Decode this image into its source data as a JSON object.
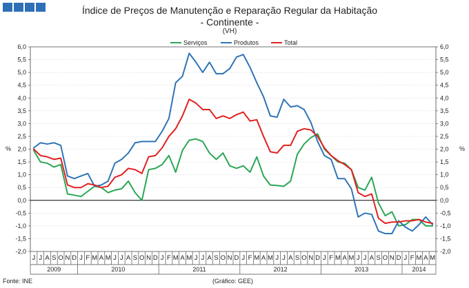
{
  "chart_data": {
    "type": "line",
    "title": "Índice de Preços de Manutenção e Reparação Regular da Habitação",
    "subtitle": "- Continente -",
    "unit_label": "(VH)",
    "ylabel": "%",
    "ylim": [
      -2.0,
      6.0
    ],
    "ytick_step": 0.5,
    "yticks": [
      "6,0",
      "5,5",
      "5,0",
      "4,5",
      "4,0",
      "3,5",
      "3,0",
      "2,5",
      "2,0",
      "1,5",
      "1,0",
      "0,5",
      "0,0",
      "-0,5",
      "-1,0",
      "-1,5",
      "-2,0"
    ],
    "months": [
      "J",
      "J",
      "A",
      "S",
      "O",
      "N",
      "D",
      "J",
      "F",
      "M",
      "A",
      "M",
      "J",
      "J",
      "A",
      "S",
      "O",
      "N",
      "D",
      "J",
      "F",
      "M",
      "A",
      "M",
      "J",
      "J",
      "A",
      "S",
      "O",
      "N",
      "D",
      "J",
      "F",
      "M",
      "A",
      "M",
      "J",
      "J",
      "A",
      "S",
      "O",
      "N",
      "D",
      "J",
      "F",
      "M",
      "A",
      "M",
      "J",
      "J",
      "A",
      "S",
      "O",
      "N",
      "D",
      "J",
      "F",
      "M",
      "A",
      "M"
    ],
    "years": [
      {
        "label": "2009",
        "start": 0,
        "end": 6
      },
      {
        "label": "2010",
        "start": 7,
        "end": 18
      },
      {
        "label": "2011",
        "start": 19,
        "end": 30
      },
      {
        "label": "2012",
        "start": 31,
        "end": 42
      },
      {
        "label": "2013",
        "start": 43,
        "end": 54
      },
      {
        "label": "2014",
        "start": 55,
        "end": 59
      }
    ],
    "legend": [
      {
        "name": "Serviços",
        "color": "#2aa655"
      },
      {
        "name": "Produtos",
        "color": "#2e74b5"
      },
      {
        "name": "Total",
        "color": "#e0201f"
      }
    ],
    "series": [
      {
        "name": "Serviços",
        "color": "#2aa655",
        "values": [
          1.95,
          1.5,
          1.45,
          1.3,
          1.4,
          0.25,
          0.2,
          0.15,
          0.35,
          0.55,
          0.5,
          0.3,
          0.4,
          0.45,
          0.75,
          0.3,
          0.0,
          1.2,
          1.25,
          1.4,
          1.75,
          1.1,
          1.95,
          2.35,
          2.4,
          2.3,
          1.85,
          1.6,
          1.85,
          1.35,
          1.25,
          1.35,
          1.1,
          1.7,
          0.95,
          0.6,
          0.58,
          0.55,
          0.75,
          1.8,
          2.2,
          2.45,
          2.6,
          2.0,
          1.75,
          1.5,
          1.45,
          1.2,
          0.5,
          0.4,
          0.9,
          -0.1,
          -0.6,
          -0.45,
          -1.0,
          -0.95,
          -0.75,
          -0.75,
          -1.0,
          -1.0
        ]
      },
      {
        "name": "Produtos",
        "color": "#2e74b5",
        "values": [
          2.05,
          2.25,
          2.2,
          2.25,
          2.15,
          0.95,
          0.85,
          0.95,
          1.05,
          0.55,
          0.6,
          0.75,
          1.45,
          1.6,
          1.85,
          2.25,
          2.3,
          2.3,
          2.3,
          2.7,
          3.2,
          4.6,
          4.85,
          5.75,
          5.4,
          5.0,
          5.4,
          4.95,
          4.95,
          5.15,
          5.6,
          5.7,
          5.2,
          4.6,
          4.05,
          3.3,
          3.25,
          3.95,
          3.65,
          3.7,
          3.55,
          3.05,
          2.3,
          1.75,
          1.6,
          0.85,
          0.85,
          0.45,
          -0.65,
          -0.5,
          -0.55,
          -1.2,
          -1.3,
          -1.3,
          -0.8,
          -1.05,
          -1.2,
          -0.95,
          -0.65,
          -0.95
        ]
      },
      {
        "name": "Total",
        "color": "#e0201f",
        "values": [
          2.0,
          1.75,
          1.7,
          1.6,
          1.65,
          0.6,
          0.5,
          0.5,
          0.65,
          0.6,
          0.5,
          0.55,
          0.9,
          1.0,
          1.25,
          1.2,
          1.05,
          1.7,
          1.75,
          2.05,
          2.5,
          2.8,
          3.3,
          3.95,
          3.8,
          3.55,
          3.55,
          3.2,
          3.3,
          3.2,
          3.35,
          3.45,
          3.1,
          3.15,
          2.5,
          1.9,
          1.85,
          2.15,
          2.15,
          2.7,
          2.8,
          2.75,
          2.5,
          2.05,
          1.75,
          1.55,
          1.4,
          1.2,
          0.3,
          0.15,
          0.25,
          -0.7,
          -0.9,
          -0.85,
          -0.85,
          -0.8,
          -0.8,
          -0.75,
          -0.85,
          -0.9
        ]
      }
    ],
    "source": "Fonte: INE",
    "credit": "(Gráfico: GEE)"
  }
}
